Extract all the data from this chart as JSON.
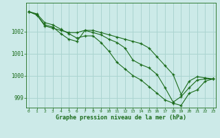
{
  "title": "Graphe pression niveau de la mer (hPa)",
  "background_color": "#cceae8",
  "grid_color": "#aad4d0",
  "line_color": "#1a6b1a",
  "xlim": [
    -0.3,
    23.3
  ],
  "ylim": [
    998.55,
    1003.3
  ],
  "yticks": [
    999,
    1000,
    1001,
    1002
  ],
  "xticks": [
    0,
    1,
    2,
    3,
    4,
    5,
    6,
    7,
    8,
    9,
    10,
    11,
    12,
    13,
    14,
    15,
    16,
    17,
    18,
    19,
    20,
    21,
    22,
    23
  ],
  "series1": [
    1002.9,
    1002.8,
    1002.4,
    1002.3,
    1002.1,
    1001.9,
    1001.7,
    1001.8,
    1001.8,
    1001.5,
    1001.1,
    1000.6,
    1000.3,
    1000.0,
    999.8,
    999.5,
    999.2,
    998.9,
    998.75,
    998.65,
    999.2,
    999.35,
    999.75,
    999.85
  ],
  "series2": [
    1002.9,
    1002.75,
    1002.3,
    1002.2,
    1001.9,
    1001.65,
    1001.55,
    1002.05,
    1001.95,
    1001.85,
    1001.65,
    1001.5,
    1001.25,
    1000.7,
    1000.5,
    1000.35,
    1000.05,
    999.45,
    998.8,
    999.05,
    999.45,
    999.8,
    999.85,
    999.85
  ],
  "series3": [
    1002.9,
    1002.75,
    1002.25,
    1002.15,
    1002.05,
    1001.95,
    1001.95,
    1002.05,
    1002.05,
    1001.95,
    1001.85,
    1001.75,
    1001.65,
    1001.55,
    1001.45,
    1001.25,
    1000.85,
    1000.45,
    1000.05,
    999.15,
    999.75,
    999.95,
    999.9,
    999.85
  ]
}
